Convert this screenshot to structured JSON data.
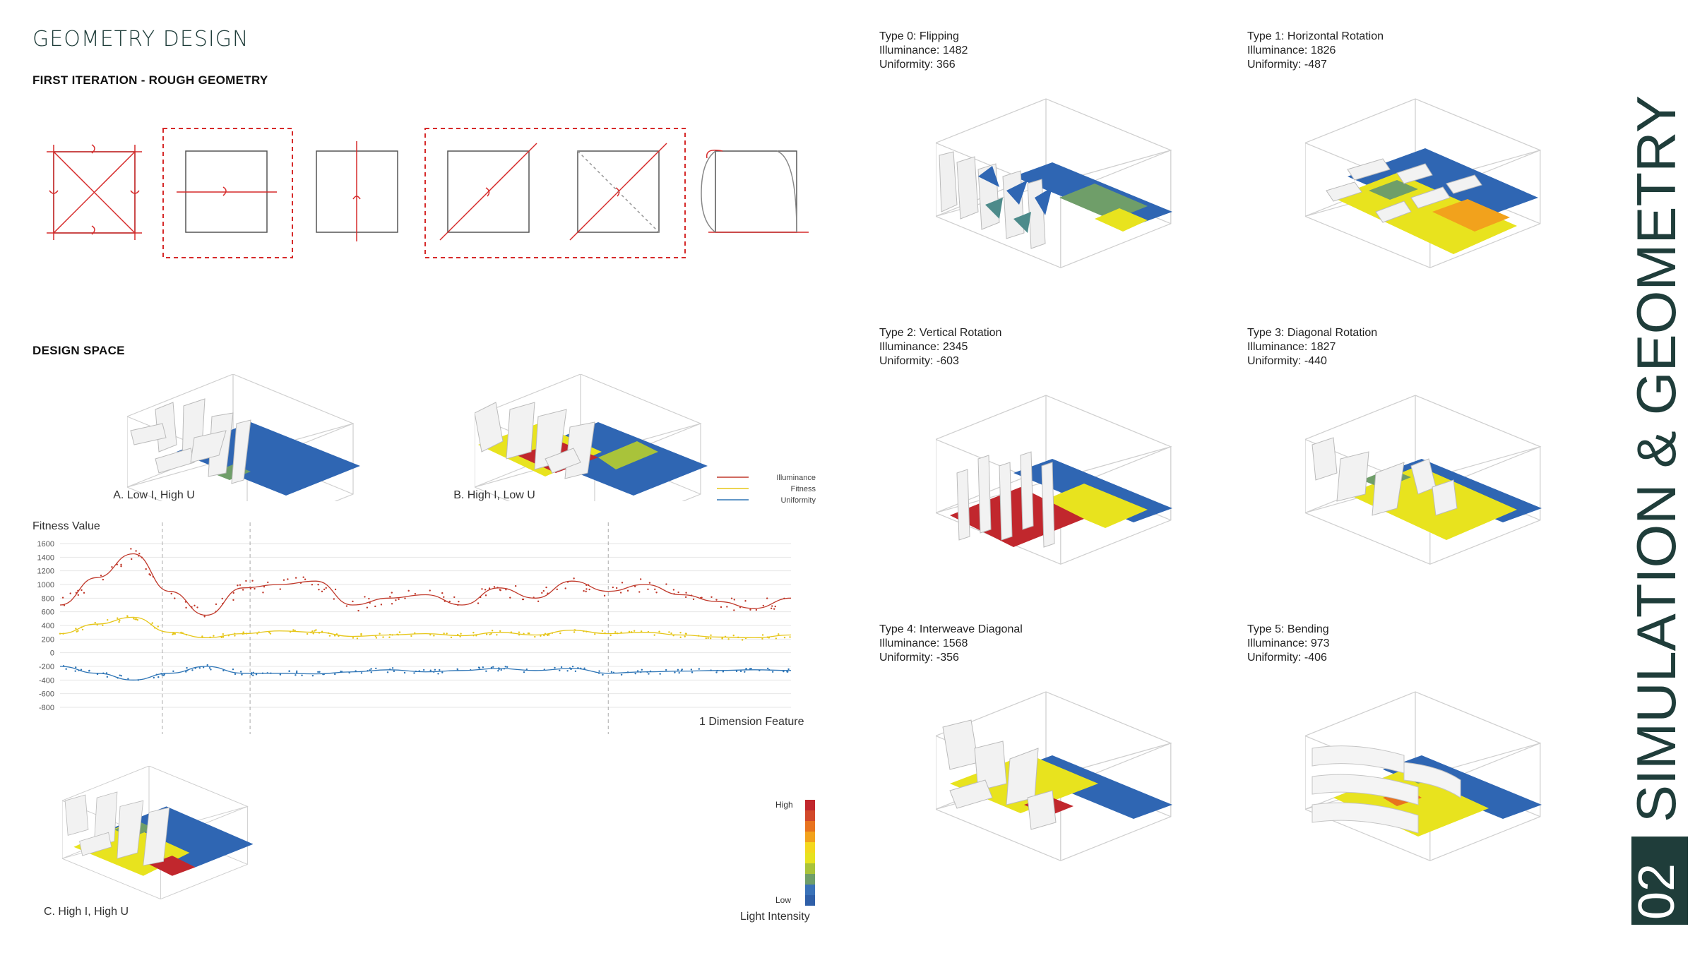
{
  "header": {
    "title": "GEOMETRY DESIGN",
    "first_iteration": "FIRST ITERATION - ROUGH GEOMETRY",
    "design_space": "DESIGN SPACE"
  },
  "side_title": {
    "number": "02",
    "text": "SIMULATION & GEOMETRY"
  },
  "design_space_models": [
    {
      "caption": "A. Low I, High U"
    },
    {
      "caption": "B. High I, Low U"
    },
    {
      "caption": "C. High I, High U"
    }
  ],
  "types": [
    {
      "name": "Type 0: Flipping",
      "illuminance": "Illuminance: 1482",
      "uniformity": "Uniformity: 366"
    },
    {
      "name": "Type 1: Horizontal Rotation",
      "illuminance": "Illuminance: 1826",
      "uniformity": "Uniformity: -487"
    },
    {
      "name": "Type 2: Vertical Rotation",
      "illuminance": "Illuminance: 2345",
      "uniformity": "Uniformity: -603"
    },
    {
      "name": "Type 3: Diagonal Rotation",
      "illuminance": "Illuminance: 1827",
      "uniformity": "Uniformity: -440"
    },
    {
      "name": "Type 4: Interweave Diagonal",
      "illuminance": "Illuminance: 1568",
      "uniformity": "Uniformity: -356"
    },
    {
      "name": "Type 5: Bending",
      "illuminance": "Illuminance: 973",
      "uniformity": "Uniformity: -406"
    }
  ],
  "chart_data": {
    "type": "line",
    "title": "Fitness Value",
    "xlabel": "1 Dimension Feature",
    "ylabel": "Fitness Value",
    "ylim": [
      -800,
      1600
    ],
    "yticks": [
      "1600",
      "1400",
      "1200",
      "1000",
      "800",
      "600",
      "400",
      "200",
      "0",
      "-200",
      "-400",
      "-600",
      "-800"
    ],
    "grid": true,
    "legend_position": "top-right",
    "x": [
      0,
      5,
      10,
      15,
      20,
      25,
      30,
      35,
      40,
      45,
      50,
      55,
      60,
      65,
      70,
      75,
      80,
      85,
      90,
      95,
      100
    ],
    "series": [
      {
        "name": "Illuminance",
        "color": "#c0392b",
        "values": [
          700,
          1100,
          1450,
          900,
          550,
          950,
          1000,
          1050,
          700,
          800,
          850,
          700,
          950,
          800,
          1050,
          900,
          1000,
          850,
          750,
          650,
          800
        ]
      },
      {
        "name": "Fitness",
        "color": "#e6c619",
        "values": [
          280,
          420,
          520,
          300,
          220,
          280,
          320,
          300,
          240,
          260,
          280,
          250,
          300,
          260,
          330,
          280,
          300,
          260,
          230,
          220,
          260
        ]
      },
      {
        "name": "Uniformity",
        "color": "#2e75b6",
        "values": [
          -200,
          -300,
          -400,
          -300,
          -200,
          -300,
          -300,
          -310,
          -280,
          -250,
          -280,
          -260,
          -230,
          -260,
          -230,
          -300,
          -280,
          -270,
          -260,
          -250,
          -260
        ]
      }
    ],
    "markers_x": [
      14,
      26,
      75
    ]
  },
  "light_legend": {
    "high": "High",
    "low": "Low",
    "title": "Light Intensity",
    "colors": [
      "#c1272d",
      "#d2492a",
      "#e8731f",
      "#f2a21c",
      "#f4d81e",
      "#e7e21f",
      "#a9c33a",
      "#6f9e69",
      "#3a72b8",
      "#2f5fa8"
    ]
  }
}
